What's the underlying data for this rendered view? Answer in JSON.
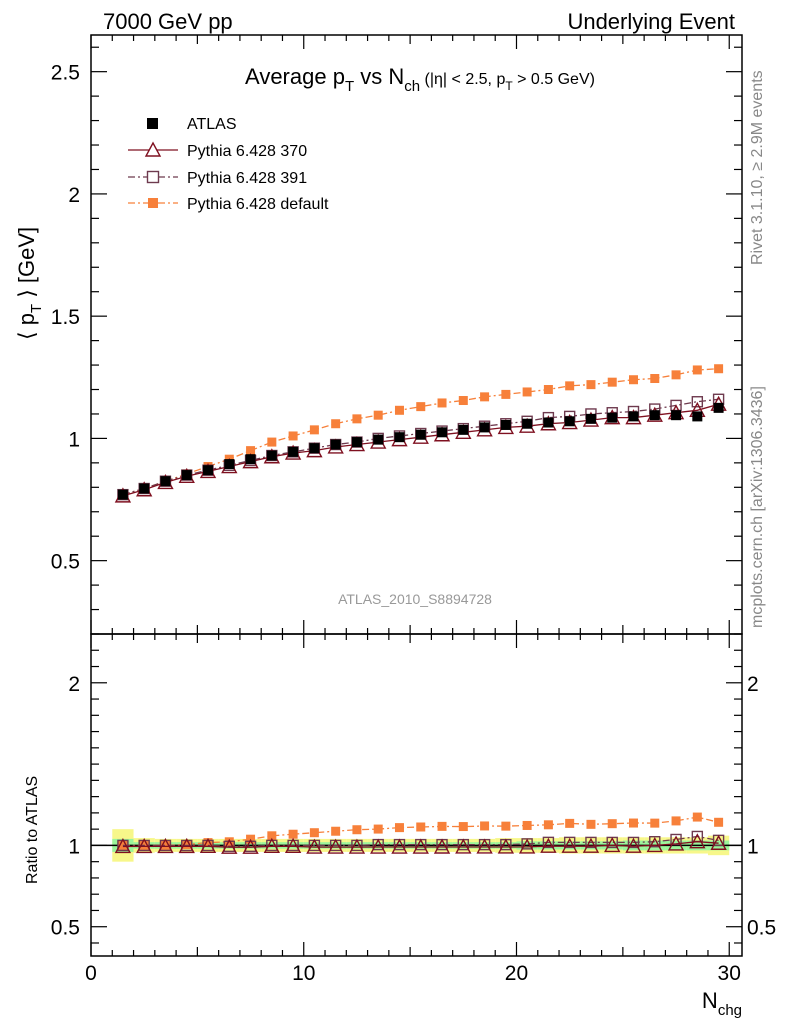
{
  "header": {
    "left": "7000 GeV pp",
    "right": "Underlying Event"
  },
  "title": {
    "main": "Average p",
    "main_sub": "T",
    "vs": " vs N",
    "vs_sub": "ch",
    "cut_1": " (|η| < 2.5, p",
    "cut_sub": "T",
    "cut_2": " > 0.5 GeV)"
  },
  "side_labels": {
    "rivet": "Rivet 3.1.10, ≥ 2.9M events",
    "mcplots": "mcplots.cern.ch [arXiv:1306.3436]"
  },
  "analysis_id": "ATLAS_2010_S8894728",
  "axis_labels": {
    "ylabel_main_1": "⟨ p",
    "ylabel_main_sub": "T",
    "ylabel_main_2": " ⟩ [GeV]",
    "ylabel_ratio": "Ratio to ATLAS",
    "xlabel": "N",
    "xlabel_sub": "chg"
  },
  "colors": {
    "atlas": "#000000",
    "tune370": "#7f1020",
    "tune391": "#6e3a4e",
    "default": "#f7803a",
    "band_inner": "#9bf59b",
    "band_outer": "#f7f78a"
  },
  "chart_data": {
    "type": "line",
    "x": [
      1.5,
      2.5,
      3.5,
      4.5,
      5.5,
      6.5,
      7.5,
      8.5,
      9.5,
      10.5,
      11.5,
      12.5,
      13.5,
      14.5,
      15.5,
      16.5,
      17.5,
      18.5,
      19.5,
      20.5,
      21.5,
      22.5,
      23.5,
      24.5,
      25.5,
      26.5,
      27.5,
      28.5,
      29.5
    ],
    "xlim": [
      0,
      30.6
    ],
    "ylim": [
      0.2,
      2.65
    ],
    "ratio_ylim": [
      0.32,
      2.3
    ],
    "x_ticks": [
      0,
      10,
      20,
      30
    ],
    "y_ticks": [
      0.5,
      1,
      1.5,
      2,
      2.5
    ],
    "ratio_y_ticks": [
      0.5,
      1,
      2
    ],
    "x_ticklabels": [
      "0",
      "10",
      "20",
      "30"
    ],
    "y_ticklabels": [
      "0.5",
      "1",
      "1.5",
      "2",
      "2.5"
    ],
    "ratio_y_ticklabels": [
      "0.5",
      "1",
      "2"
    ],
    "legend_position": "top-left",
    "series": [
      {
        "name": "ATLAS",
        "style": "data",
        "values": [
          0.77,
          0.795,
          0.825,
          0.85,
          0.87,
          0.895,
          0.915,
          0.93,
          0.945,
          0.96,
          0.975,
          0.985,
          0.995,
          1.005,
          1.015,
          1.025,
          1.035,
          1.045,
          1.055,
          1.06,
          1.065,
          1.07,
          1.08,
          1.085,
          1.09,
          1.095,
          1.095,
          1.09,
          1.125
        ]
      },
      {
        "name": "Pythia 6.428 370",
        "style": "triangle",
        "values": [
          0.765,
          0.79,
          0.82,
          0.845,
          0.865,
          0.885,
          0.905,
          0.925,
          0.94,
          0.95,
          0.965,
          0.975,
          0.985,
          0.995,
          1.005,
          1.015,
          1.025,
          1.035,
          1.045,
          1.05,
          1.06,
          1.065,
          1.075,
          1.085,
          1.085,
          1.095,
          1.105,
          1.115,
          1.14
        ]
      },
      {
        "name": "Pythia 6.428 391",
        "style": "square-open",
        "values": [
          0.77,
          0.795,
          0.825,
          0.85,
          0.87,
          0.89,
          0.91,
          0.93,
          0.945,
          0.96,
          0.975,
          0.985,
          1.0,
          1.01,
          1.02,
          1.03,
          1.04,
          1.05,
          1.06,
          1.07,
          1.085,
          1.09,
          1.1,
          1.105,
          1.11,
          1.12,
          1.135,
          1.15,
          1.16
        ]
      },
      {
        "name": "Pythia 6.428 default",
        "style": "square-filled",
        "values": [
          0.77,
          0.795,
          0.825,
          0.855,
          0.885,
          0.915,
          0.95,
          0.985,
          1.01,
          1.035,
          1.06,
          1.08,
          1.095,
          1.115,
          1.13,
          1.145,
          1.155,
          1.17,
          1.18,
          1.19,
          1.2,
          1.215,
          1.22,
          1.23,
          1.24,
          1.245,
          1.26,
          1.28,
          1.285
        ]
      }
    ],
    "band": {
      "inner_half_width": [
        0.04,
        0.02,
        0.02,
        0.02,
        0.02,
        0.02,
        0.02,
        0.02,
        0.02,
        0.02,
        0.02,
        0.02,
        0.02,
        0.02,
        0.02,
        0.02,
        0.02,
        0.02,
        0.02,
        0.025,
        0.025,
        0.025,
        0.025,
        0.025,
        0.03,
        0.03,
        0.03,
        0.03,
        0.03
      ],
      "outer_half_width": [
        0.1,
        0.045,
        0.04,
        0.04,
        0.04,
        0.04,
        0.04,
        0.04,
        0.04,
        0.04,
        0.04,
        0.04,
        0.04,
        0.04,
        0.04,
        0.04,
        0.04,
        0.04,
        0.045,
        0.045,
        0.045,
        0.05,
        0.05,
        0.05,
        0.05,
        0.05,
        0.05,
        0.05,
        0.06
      ]
    }
  }
}
